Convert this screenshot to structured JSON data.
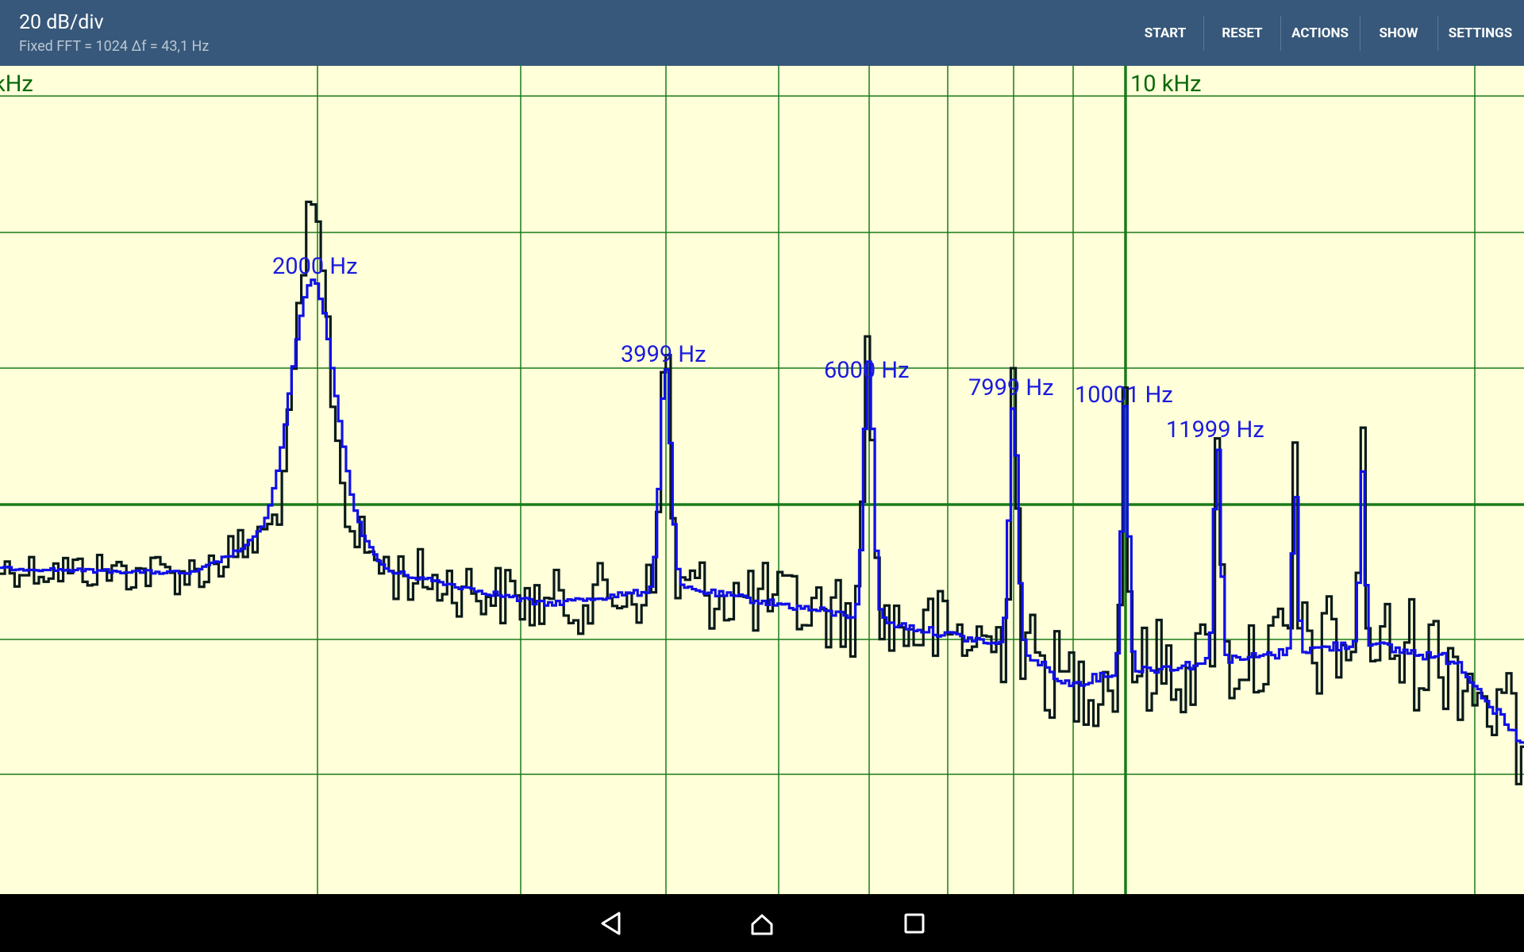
{
  "header": {
    "title": "20 dB/div",
    "subtitle": "Fixed FFT = 1024 Δf = 43,1 Hz"
  },
  "buttons": [
    "START",
    "RESET",
    "ACTIONS",
    "SHOW",
    "SETTINGS"
  ],
  "axis_labels": [
    "kHz",
    "10 kHz"
  ],
  "peak_labels": [
    "2000 Hz",
    "3999 Hz",
    "6000 Hz",
    "7999 Hz",
    "10001 Hz",
    "11999 Hz"
  ]
}
